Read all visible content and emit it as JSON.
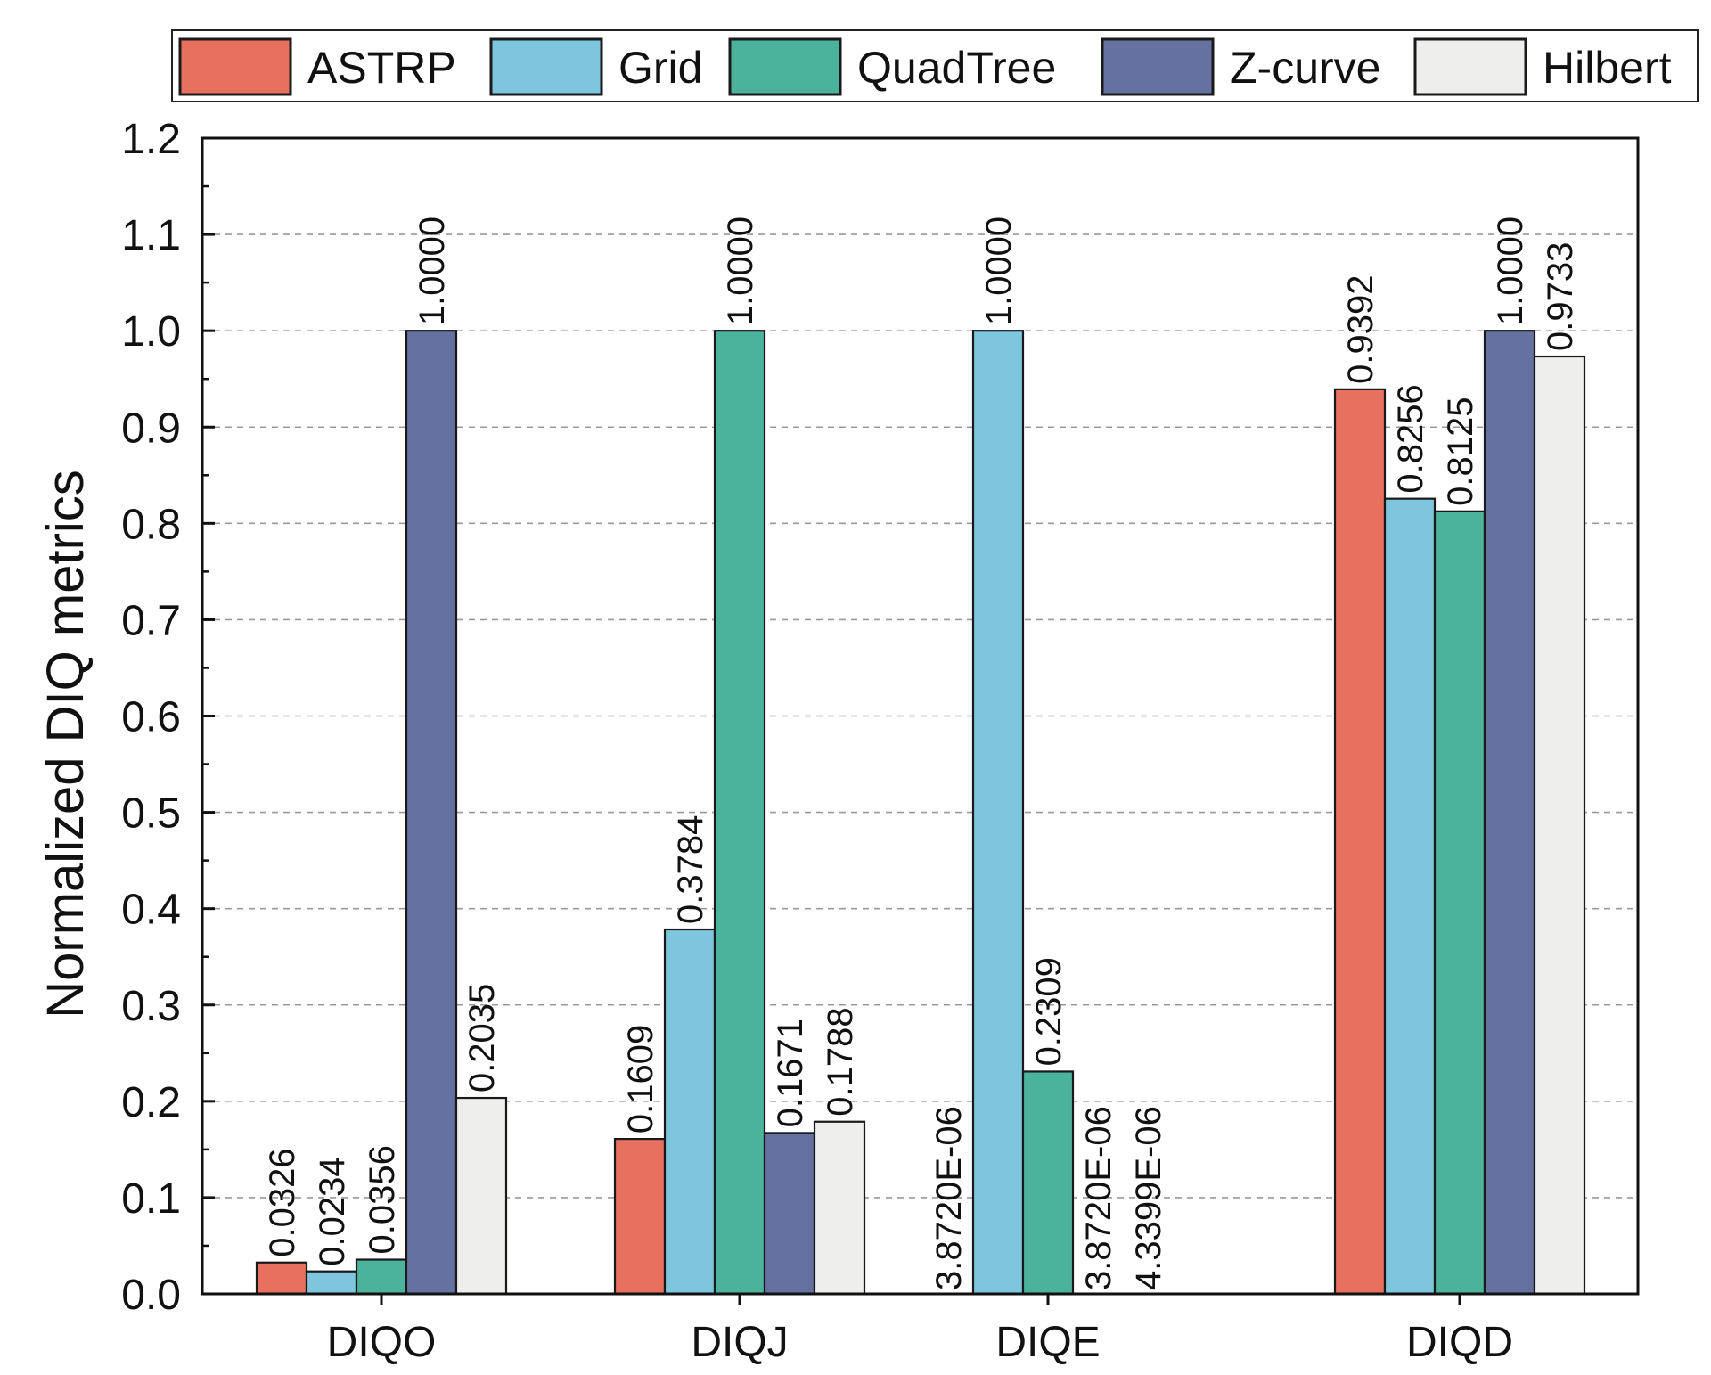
{
  "chart_data": {
    "type": "bar",
    "title": "",
    "xlabel": "",
    "ylabel": "Normalized DIQ metrics",
    "ylim": [
      0,
      1.2
    ],
    "yticks": [
      "0.0",
      "0.1",
      "0.2",
      "0.3",
      "0.4",
      "0.5",
      "0.6",
      "0.7",
      "0.8",
      "0.9",
      "1.0",
      "1.1",
      "1.2"
    ],
    "grid": true,
    "legend_position": "top",
    "categories": [
      "DIQO",
      "DIQJ",
      "DIQE",
      "DIQD"
    ],
    "series": [
      {
        "name": "ASTRP",
        "color": "#E8705F",
        "values": [
          0.0326,
          0.1609,
          3.872e-06,
          0.9392
        ],
        "labels": [
          "0.0326",
          "0.1609",
          "3.8720E-06",
          "0.9392"
        ]
      },
      {
        "name": "Grid",
        "color": "#7EC6DE",
        "values": [
          0.0234,
          0.3784,
          1.0,
          0.8256
        ],
        "labels": [
          "0.0234",
          "0.3784",
          "1.0000",
          "0.8256"
        ]
      },
      {
        "name": "QuadTree",
        "color": "#4BB39B",
        "values": [
          0.0356,
          1.0,
          0.2309,
          0.8125
        ],
        "labels": [
          "0.0356",
          "1.0000",
          "0.2309",
          "0.8125"
        ]
      },
      {
        "name": "Z-curve",
        "color": "#6571A0",
        "values": [
          1.0,
          0.1671,
          3.872e-06,
          1.0
        ],
        "labels": [
          "1.0000",
          "0.1671",
          "3.8720E-06",
          "1.0000"
        ]
      },
      {
        "name": "Hilbert",
        "color": "#EEEFED",
        "values": [
          0.2035,
          0.1788,
          4.3399e-06,
          0.9733
        ],
        "labels": [
          "0.2035",
          "0.1788",
          "4.3399E-06",
          "0.9733"
        ]
      }
    ]
  }
}
